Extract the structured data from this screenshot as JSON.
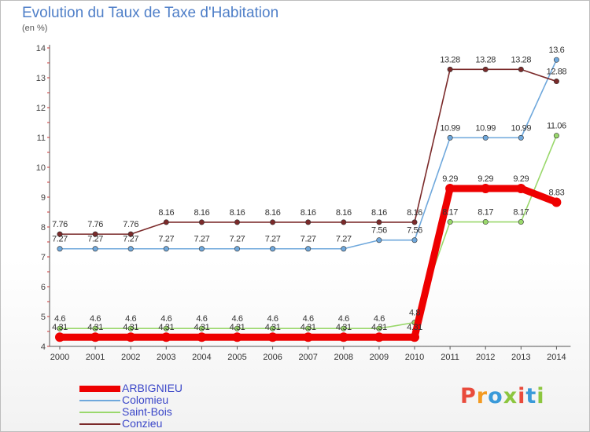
{
  "header": {
    "title": "Evolution du Taux de Taxe d'Habitation",
    "subtitle": "(en %)"
  },
  "logo": {
    "text": "Proxiti",
    "colors": [
      "#e94b3c",
      "#f39a21",
      "#3a9ad9",
      "#8cc63f",
      "#e94b3c",
      "#3a9ad9",
      "#8cc63f"
    ]
  },
  "chart_data": {
    "type": "line",
    "title": "Evolution du Taux de Taxe d'Habitation",
    "subtitle": "(en %)",
    "xlabel": "",
    "ylabel": "(en %)",
    "ylim": [
      4,
      14
    ],
    "y_ticks": [
      4,
      5,
      6,
      7,
      8,
      9,
      10,
      11,
      12,
      13,
      14
    ],
    "grid": false,
    "legend_position": "bottom-left",
    "categories": [
      "2000",
      "2001",
      "2002",
      "2003",
      "2004",
      "2005",
      "2006",
      "2007",
      "2008",
      "2009",
      "2010",
      "2011",
      "2012",
      "2013",
      "2014"
    ],
    "series": [
      {
        "name": "ARBIGNIEU",
        "color": "#ee0000",
        "emphasis": true,
        "values": [
          4.31,
          4.31,
          4.31,
          4.31,
          4.31,
          4.31,
          4.31,
          4.31,
          4.31,
          4.31,
          4.31,
          9.29,
          9.29,
          9.29,
          8.83
        ],
        "labels": [
          "4.31",
          "4.31",
          "4.31",
          "4.31",
          "4.31",
          "4.31",
          "4.31",
          "4.31",
          "4.31",
          "4.31",
          "4.31",
          "9.29",
          "9.29",
          "9.29",
          "8.83"
        ]
      },
      {
        "name": "Colomieu",
        "color": "#6fa8dc",
        "emphasis": false,
        "values": [
          7.27,
          7.27,
          7.27,
          7.27,
          7.27,
          7.27,
          7.27,
          7.27,
          7.27,
          7.56,
          7.56,
          10.99,
          10.99,
          10.99,
          13.6
        ],
        "labels": [
          "7.27",
          "7.27",
          "7.27",
          "7.27",
          "7.27",
          "7.27",
          "7.27",
          "7.27",
          "7.27",
          "7.56",
          "7.56",
          "10.99",
          "10.99",
          "10.99",
          "13.6"
        ]
      },
      {
        "name": "Saint-Bois",
        "color": "#9ad86c",
        "emphasis": false,
        "values": [
          4.6,
          4.6,
          4.6,
          4.6,
          4.6,
          4.6,
          4.6,
          4.6,
          4.6,
          4.6,
          4.8,
          8.17,
          8.17,
          8.17,
          11.06
        ],
        "labels": [
          "4.6",
          "4.6",
          "4.6",
          "4.6",
          "4.6",
          "4.6",
          "4.6",
          "4.6",
          "4.6",
          "4.6",
          "4.8",
          "8.17",
          "8.17",
          "8.17",
          "11.06"
        ]
      },
      {
        "name": "Conzieu",
        "color": "#7b2a2a",
        "emphasis": false,
        "values": [
          7.76,
          7.76,
          7.76,
          8.16,
          8.16,
          8.16,
          8.16,
          8.16,
          8.16,
          8.16,
          8.16,
          13.28,
          13.28,
          13.28,
          12.88
        ],
        "labels": [
          "7.76",
          "7.76",
          "7.76",
          "8.16",
          "8.16",
          "8.16",
          "8.16",
          "8.16",
          "8.16",
          "8.16",
          "8.16",
          "13.28",
          "13.28",
          "13.28",
          "12.88"
        ]
      }
    ]
  }
}
